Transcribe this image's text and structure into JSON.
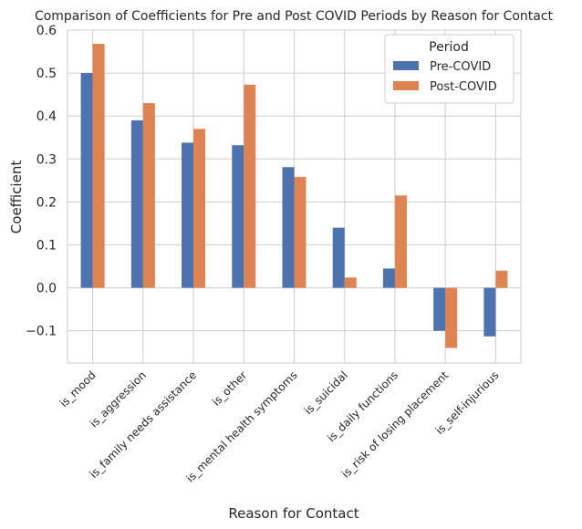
{
  "chart_data": {
    "type": "bar",
    "title": "Comparison of Coefficients for Pre and Post COVID Periods by Reason for Contact",
    "xlabel": "Reason for Contact",
    "ylabel": "Coefficient",
    "ylim": [
      -0.175,
      0.6
    ],
    "yticks": [
      -0.1,
      0.0,
      0.1,
      0.2,
      0.3,
      0.4,
      0.5,
      0.6
    ],
    "ytick_labels": [
      "−0.1",
      "0.0",
      "0.1",
      "0.2",
      "0.3",
      "0.4",
      "0.5",
      "0.6"
    ],
    "grid": true,
    "legend": {
      "title": "Period",
      "placement": "top-right"
    },
    "categories": [
      "is_mood",
      "is_aggression",
      "is_family needs assistance",
      "is_other",
      "is_mental health symptoms",
      "is_suicidal",
      "is_daily functions",
      "is_risk of losing placement",
      "is_self-injurious"
    ],
    "series": [
      {
        "name": "Pre-COVID",
        "color": "#4c72b0",
        "values": [
          0.5,
          0.39,
          0.338,
          0.332,
          0.281,
          0.14,
          0.045,
          -0.1,
          -0.113
        ]
      },
      {
        "name": "Post-COVID",
        "color": "#dd8452",
        "values": [
          0.568,
          0.43,
          0.37,
          0.473,
          0.258,
          0.024,
          0.215,
          -0.14,
          0.04
        ]
      }
    ]
  }
}
